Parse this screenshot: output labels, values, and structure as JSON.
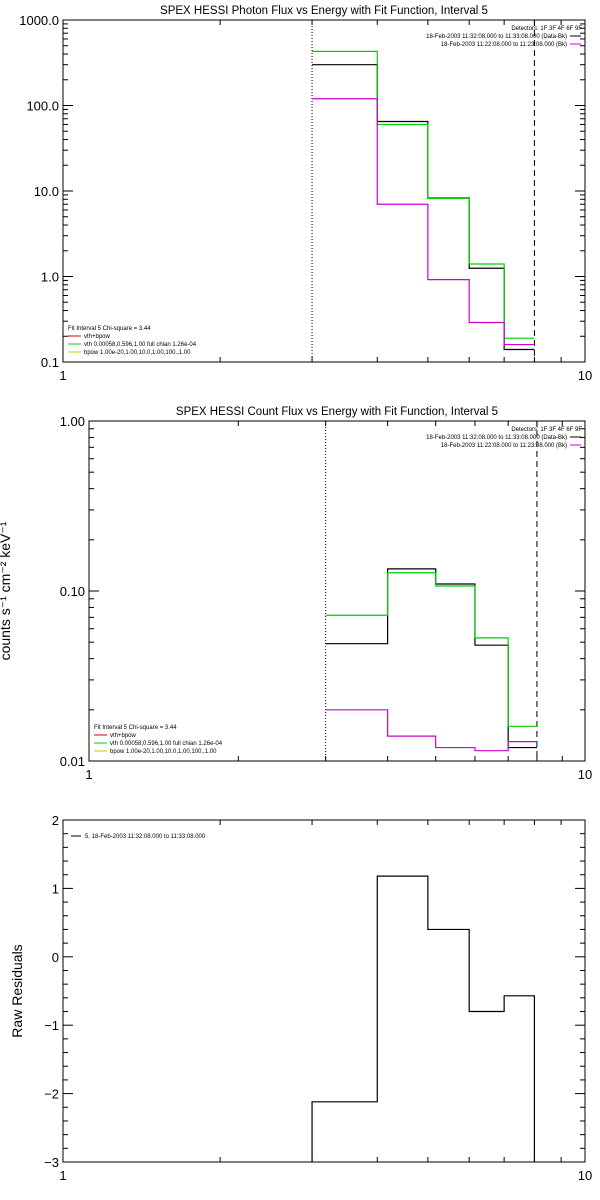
{
  "colors": {
    "data_black": "#000000",
    "model_green": "#00d000",
    "vth_magenta": "#d000d0",
    "bpow_yellow": "#c8c800",
    "vth_bpow_red": "#d00000"
  },
  "chart_data": [
    {
      "type": "line",
      "title": "SPEX HESSI Photon Flux vs Energy with Fit Function, Interval 5",
      "xscale": "log",
      "yscale": "log",
      "xlim": [
        1,
        10
      ],
      "ylim": [
        0.1,
        1000
      ],
      "x_ticks": [
        {
          "v": 1,
          "label": "1"
        },
        {
          "v": 10,
          "label": "10"
        }
      ],
      "y_ticks": [
        {
          "v": 0.1,
          "label": "0.1"
        },
        {
          "v": 1,
          "label": "1.0"
        },
        {
          "v": 10,
          "label": "10.0"
        },
        {
          "v": 100,
          "label": "100.0"
        },
        {
          "v": 1000,
          "label": "1000.0"
        }
      ],
      "vlines": [
        {
          "x": 3,
          "style": "dotted"
        },
        {
          "x": 8,
          "style": "dashed"
        }
      ],
      "edges": [
        3,
        4,
        5,
        6,
        7,
        8
      ],
      "series": [
        {
          "color": "#000000",
          "values": [
            300,
            65,
            8.3,
            1.25,
            0.14
          ]
        },
        {
          "color": "#00d000",
          "values": [
            430,
            60,
            8.2,
            1.4,
            0.19
          ]
        },
        {
          "color": "#d000d0",
          "values": [
            120,
            7,
            0.92,
            0.29,
            0.16
          ]
        }
      ],
      "legend_tr": [
        {
          "text": "Detectors: 1F 3F 4F 6F 9F",
          "swatch": ""
        },
        {
          "text": "18-Feb-2003 11:32:08.000 to 11:33:08.000 (Data-Bk)",
          "swatch": "#000000"
        },
        {
          "text": "18-Feb-2003 11:22:08.000 to 11:23:08.000 (Bk)",
          "swatch": "#d000d0"
        }
      ],
      "legend_bl": [
        {
          "text": "Fit Interval 5   Chi-square = 3.44",
          "swatch": ""
        },
        {
          "text": "vth+bpow",
          "swatch": "#d00000"
        },
        {
          "text": "vth 0.00058,0.596,1.00  full chian 1.26e-04",
          "swatch": "#00d000"
        },
        {
          "text": "bpow 1.00e-20,1.00,10.0,1.00,100.,1.00",
          "swatch": "#c8c800"
        }
      ]
    },
    {
      "type": "line",
      "title": "SPEX HESSI Count Flux vs Energy with Fit Function, Interval 5",
      "ylabel": "counts s⁻¹ cm⁻² keV⁻¹",
      "xscale": "log",
      "yscale": "log",
      "xlim": [
        1,
        10
      ],
      "ylim": [
        0.01,
        1
      ],
      "x_ticks": [
        {
          "v": 1,
          "label": "1"
        },
        {
          "v": 10,
          "label": "10"
        }
      ],
      "y_ticks": [
        {
          "v": 0.01,
          "label": "0.01"
        },
        {
          "v": 0.1,
          "label": "0.10"
        },
        {
          "v": 1,
          "label": "1.00"
        }
      ],
      "vlines": [
        {
          "x": 3,
          "style": "dotted"
        },
        {
          "x": 8,
          "style": "dashed"
        }
      ],
      "edges": [
        3,
        4,
        5,
        6,
        7,
        8
      ],
      "series": [
        {
          "color": "#000000",
          "values": [
            0.049,
            0.135,
            0.11,
            0.048,
            0.012
          ]
        },
        {
          "color": "#00d000",
          "values": [
            0.072,
            0.128,
            0.107,
            0.053,
            0.016
          ]
        },
        {
          "color": "#d000d0",
          "values": [
            0.02,
            0.014,
            0.012,
            0.0115,
            0.013
          ]
        }
      ],
      "legend_tr": [
        {
          "text": "Detectors: 1F 3F 4F 6F 9F",
          "swatch": ""
        },
        {
          "text": "18-Feb-2003 11:32:08.000 to 11:33:08.000 (Data-Bk)",
          "swatch": "#000000"
        },
        {
          "text": "18-Feb-2003 11:22:08.000 to 11:23:08.000 (Bk)",
          "swatch": "#d000d0"
        }
      ],
      "legend_bl": [
        {
          "text": "Fit Interval 5   Chi-square = 3.44",
          "swatch": ""
        },
        {
          "text": "vth+bpow",
          "swatch": "#d00000"
        },
        {
          "text": "vth 0.00058,0.596,1.00  full chian 1.26e-04",
          "swatch": "#00d000"
        },
        {
          "text": "bpow 1.00e-20,1.00,10.0,1.00,100.,1.00",
          "swatch": "#c8c800"
        }
      ]
    },
    {
      "type": "line",
      "title": "",
      "ylabel": "Raw Residuals",
      "xscale": "log",
      "yscale": "linear",
      "xlim": [
        1,
        10
      ],
      "ylim": [
        -3,
        2
      ],
      "x_ticks": [
        {
          "v": 1,
          "label": "1"
        },
        {
          "v": 10,
          "label": "10"
        }
      ],
      "y_ticks": [
        {
          "v": -3,
          "label": "−3"
        },
        {
          "v": -2,
          "label": "−2"
        },
        {
          "v": -1,
          "label": "−1"
        },
        {
          "v": 0,
          "label": "0"
        },
        {
          "v": 1,
          "label": "1"
        },
        {
          "v": 2,
          "label": "2"
        }
      ],
      "vlines": [],
      "edges": [
        3,
        4,
        5,
        6,
        7,
        8
      ],
      "series": [
        {
          "color": "#000000",
          "values": [
            -2.12,
            1.18,
            0.4,
            -0.8,
            -0.57
          ],
          "open_ends": true
        }
      ],
      "legend_tr": [],
      "legend_bl": [],
      "legend_tl": [
        {
          "text": "5. 18-Feb-2003 11:32:08.000 to 11:33:08.000",
          "swatch": "#000000"
        }
      ]
    }
  ]
}
